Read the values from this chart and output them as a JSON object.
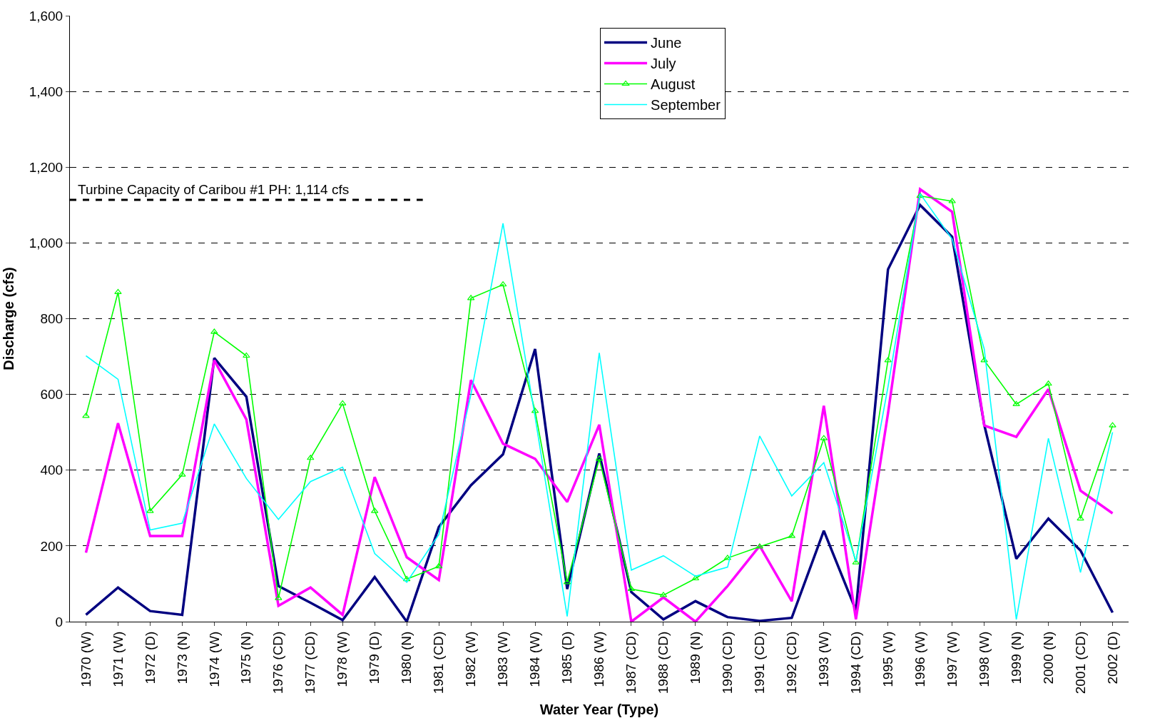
{
  "chart_data": {
    "type": "line",
    "xlabel": "Water Year (Type)",
    "ylabel": "Discharge (cfs)",
    "categories": [
      "1970 (W)",
      "1971 (W)",
      "1972 (D)",
      "1973 (N)",
      "1974 (W)",
      "1975 (N)",
      "1976 (CD)",
      "1977 (CD)",
      "1978 (W)",
      "1979 (D)",
      "1980 (N)",
      "1981 (CD)",
      "1982 (W)",
      "1983 (W)",
      "1984 (W)",
      "1985 (D)",
      "1986 (W)",
      "1987 (CD)",
      "1988 (CD)",
      "1989 (N)",
      "1990 (CD)",
      "1991 (CD)",
      "1992 (CD)",
      "1993 (W)",
      "1994 (CD)",
      "1995 (W)",
      "1996 (W)",
      "1997 (W)",
      "1998 (W)",
      "1999 (N)",
      "2000 (N)",
      "2001 (CD)",
      "2002 (D)"
    ],
    "series": [
      {
        "name": "June",
        "color": "#000080",
        "marker": "none",
        "values": [
          18,
          90,
          28,
          18,
          696,
          594,
          94,
          50,
          4,
          118,
          0,
          250,
          360,
          442,
          720,
          86,
          444,
          78,
          6,
          54,
          12,
          2,
          10,
          240,
          30,
          930,
          1100,
          1016,
          520,
          166,
          272,
          188,
          24
        ]
      },
      {
        "name": "July",
        "color": "#ff00ff",
        "marker": "none",
        "values": [
          182,
          524,
          226,
          226,
          690,
          534,
          42,
          90,
          18,
          382,
          170,
          110,
          638,
          470,
          430,
          316,
          520,
          0,
          64,
          0,
          94,
          200,
          54,
          570,
          6,
          550,
          1142,
          1082,
          518,
          488,
          614,
          346,
          286
        ]
      },
      {
        "name": "August",
        "color": "#00ff00",
        "marker": "triangle",
        "values": [
          543,
          870,
          292,
          388,
          765,
          702,
          62,
          432,
          576,
          292,
          112,
          146,
          854,
          890,
          556,
          104,
          430,
          86,
          70,
          114,
          168,
          198,
          226,
          484,
          156,
          690,
          1124,
          1110,
          690,
          574,
          628,
          272,
          518
        ]
      },
      {
        "name": "September",
        "color": "#00ffff",
        "marker": "none",
        "values": [
          702,
          640,
          242,
          260,
          522,
          378,
          270,
          370,
          408,
          180,
          104,
          230,
          600,
          1052,
          540,
          14,
          710,
          136,
          174,
          120,
          144,
          490,
          332,
          420,
          160,
          620,
          1130,
          1010,
          720,
          6,
          484,
          130,
          500
        ]
      }
    ],
    "ylim": [
      0,
      1600
    ],
    "yticks": [
      0,
      200,
      400,
      {
        "value": 600,
        "label": "600"
      },
      800,
      {
        "value": 1000,
        "label": "1,000"
      },
      {
        "value": 1200,
        "label": "1,200"
      },
      {
        "value": 1400,
        "label": "1,400"
      },
      {
        "value": 1600,
        "label": "1,600"
      }
    ],
    "grid": "y",
    "legend": "top",
    "ref_lines": [
      {
        "axis": "y",
        "value": 1114,
        "label": "Turbine Capacity of Caribou #1 PH: 1,114 cfs",
        "color": "#000000",
        "line_style": "dashed"
      }
    ]
  }
}
